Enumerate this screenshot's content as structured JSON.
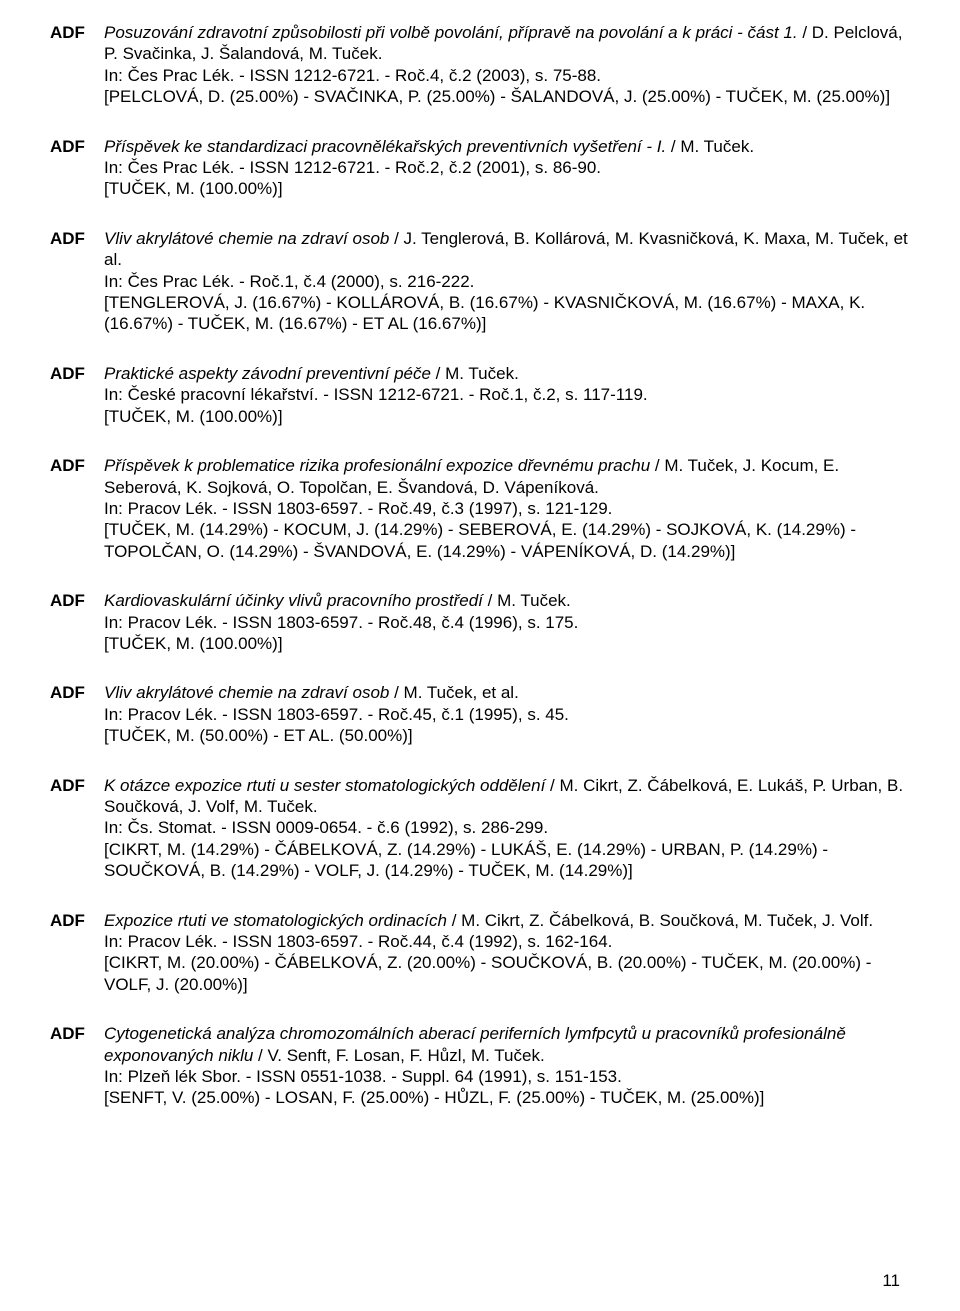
{
  "page_number": "11",
  "tag": "ADF",
  "entries": [
    {
      "title": "Posuzování zdravotní způsobilosti při volbě povolání, přípravě na povolání a k práci - část 1.",
      "authors": " / D. Pelclová, P. Svačinka, J. Šalandová, M. Tuček.",
      "source": "In: Čes Prac Lék. - ISSN 1212-6721. - Roč.4, č.2 (2003), s. 75-88.",
      "alloc": "[PELCLOVÁ, D. (25.00%) - SVAČINKA, P. (25.00%) - ŠALANDOVÁ, J. (25.00%) - TUČEK, M. (25.00%)]"
    },
    {
      "title": "Příspěvek ke standardizaci pracovnělékařských preventivních vyšetření - I.",
      "authors": " / M. Tuček.",
      "source": "In: Čes Prac Lék. - ISSN 1212-6721. - Roč.2, č.2 (2001), s. 86-90.",
      "alloc": "[TUČEK, M. (100.00%)]"
    },
    {
      "title": "Vliv akrylátové chemie na zdraví osob",
      "authors": " / J. Tenglerová, B. Kollárová, M. Kvasničková, K. Maxa, M. Tuček, et al.",
      "source": "In: Čes Prac Lék. - Roč.1, č.4 (2000), s. 216-222.",
      "alloc": "[TENGLEROVÁ, J. (16.67%) - KOLLÁROVÁ, B. (16.67%) - KVASNIČKOVÁ, M. (16.67%) - MAXA, K. (16.67%) - TUČEK, M. (16.67%) - ET AL (16.67%)]"
    },
    {
      "title": "Praktické aspekty závodní preventivní péče",
      "authors": " / M. Tuček.",
      "source": "In: České pracovní lékařství. - ISSN 1212-6721. - Roč.1, č.2, s. 117-119.",
      "alloc": "[TUČEK, M. (100.00%)]"
    },
    {
      "title": "Příspěvek k problematice rizika profesionální expozice dřevnému prachu",
      "authors": " / M. Tuček, J. Kocum, E. Seberová, K. Sojková, O. Topolčan, E. Švandová, D. Vápeníková.",
      "source": "In: Pracov Lék. - ISSN 1803-6597. - Roč.49, č.3 (1997), s. 121-129.",
      "alloc": "[TUČEK, M. (14.29%) - KOCUM, J. (14.29%) - SEBEROVÁ, E. (14.29%) - SOJKOVÁ, K. (14.29%) - TOPOLČAN, O. (14.29%) - ŠVANDOVÁ, E. (14.29%) - VÁPENÍKOVÁ, D. (14.29%)]"
    },
    {
      "title": "Kardiovaskulární účinky vlivů pracovního prostředí",
      "authors": " / M. Tuček.",
      "source": "In: Pracov Lék. - ISSN 1803-6597. - Roč.48, č.4 (1996), s. 175.",
      "alloc": "[TUČEK, M. (100.00%)]"
    },
    {
      "title": "Vliv akrylátové chemie na zdraví osob",
      "authors": " / M. Tuček, et al.",
      "source": "In: Pracov Lék. - ISSN 1803-6597. - Roč.45, č.1 (1995), s. 45.",
      "alloc": "[TUČEK, M. (50.00%) - ET AL. (50.00%)]"
    },
    {
      "title": "K otázce expozice rtuti u sester stomatologických oddělení",
      "authors": " / M. Cikrt, Z. Čábelková, E. Lukáš, P. Urban, B. Součková, J. Volf, M. Tuček.",
      "source": "In: Čs. Stomat. - ISSN 0009-0654. - č.6 (1992), s. 286-299.",
      "alloc": "[CIKRT, M. (14.29%) - ČÁBELKOVÁ, Z. (14.29%) - LUKÁŠ, E. (14.29%) - URBAN, P. (14.29%) - SOUČKOVÁ, B. (14.29%) - VOLF, J. (14.29%) - TUČEK, M. (14.29%)]"
    },
    {
      "title": "Expozice rtuti ve stomatologických ordinacích",
      "authors": " / M. Cikrt, Z. Čábelková, B. Součková, M. Tuček, J. Volf.",
      "source": "In: Pracov Lék. - ISSN 1803-6597. - Roč.44, č.4 (1992), s. 162-164.",
      "alloc": "[CIKRT, M. (20.00%) - ČÁBELKOVÁ, Z. (20.00%) - SOUČKOVÁ, B. (20.00%) - TUČEK, M. (20.00%) - VOLF, J. (20.00%)]"
    },
    {
      "title": "Cytogenetická analýza chromozomálních aberací periferních lymfpcytů u pracovníků profesionálně exponovaných niklu",
      "authors": " / V. Senft, F. Losan, F. Hůzl, M. Tuček.",
      "source": "In: Plzeň lék Sbor. - ISSN 0551-1038. - Suppl. 64 (1991), s. 151-153.",
      "alloc": "[SENFT, V. (25.00%) - LOSAN, F. (25.00%) - HŮZL, F. (25.00%) - TUČEK, M. (25.00%)]"
    }
  ]
}
